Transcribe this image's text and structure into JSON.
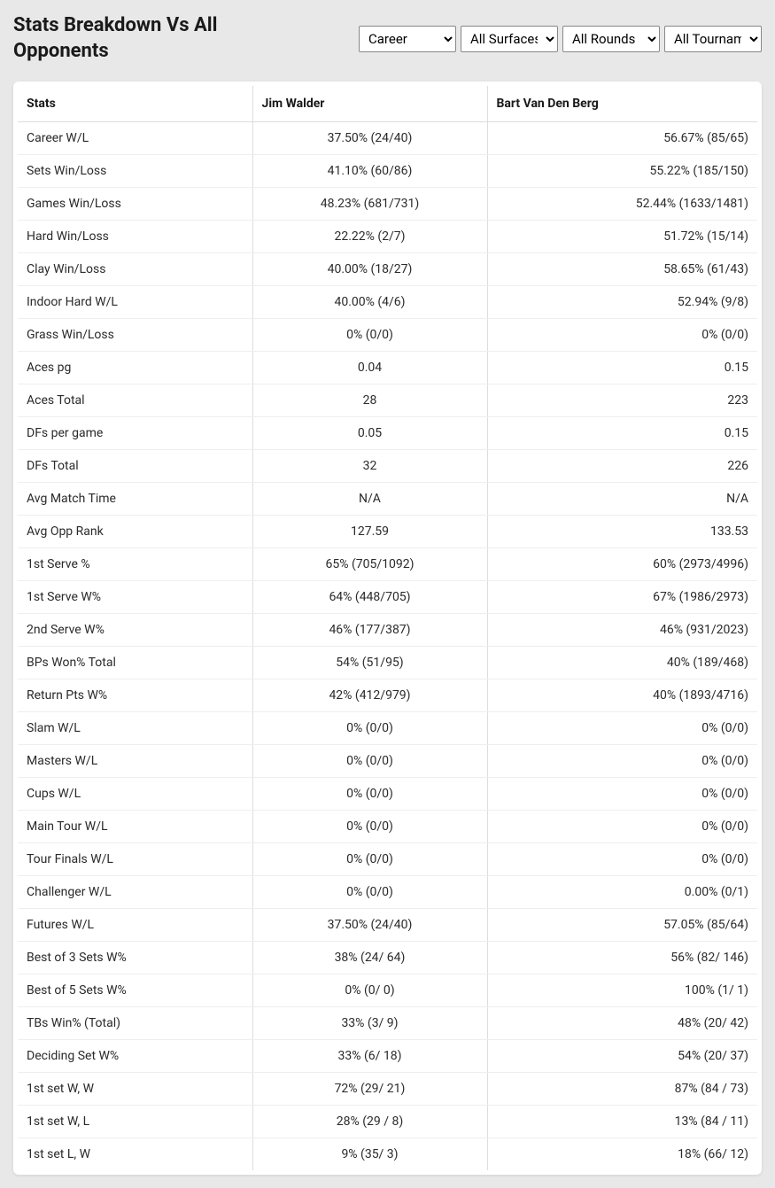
{
  "header": {
    "title": "Stats Breakdown Vs All Opponents"
  },
  "filters": {
    "period": {
      "selected": "Career",
      "options": [
        "Career"
      ]
    },
    "surface": {
      "selected": "All Surfaces",
      "options": [
        "All Surfaces"
      ]
    },
    "rounds": {
      "selected": "All Rounds",
      "options": [
        "All Rounds"
      ]
    },
    "tournament": {
      "selected": "All Tournaments",
      "options": [
        "All Tournaments"
      ]
    }
  },
  "table": {
    "columns": [
      "Stats",
      "Jim Walder",
      "Bart Van Den Berg"
    ],
    "rows": [
      {
        "stat": "Career W/L",
        "p1": "37.50% (24/40)",
        "p2": "56.67% (85/65)"
      },
      {
        "stat": "Sets Win/Loss",
        "p1": "41.10% (60/86)",
        "p2": "55.22% (185/150)"
      },
      {
        "stat": "Games Win/Loss",
        "p1": "48.23% (681/731)",
        "p2": "52.44% (1633/1481)"
      },
      {
        "stat": "Hard Win/Loss",
        "p1": "22.22% (2/7)",
        "p2": "51.72% (15/14)"
      },
      {
        "stat": "Clay Win/Loss",
        "p1": "40.00% (18/27)",
        "p2": "58.65% (61/43)"
      },
      {
        "stat": "Indoor Hard W/L",
        "p1": "40.00% (4/6)",
        "p2": "52.94% (9/8)"
      },
      {
        "stat": "Grass Win/Loss",
        "p1": "0% (0/0)",
        "p2": "0% (0/0)"
      },
      {
        "stat": "Aces pg",
        "p1": "0.04",
        "p2": "0.15"
      },
      {
        "stat": "Aces Total",
        "p1": "28",
        "p2": "223"
      },
      {
        "stat": "DFs per game",
        "p1": "0.05",
        "p2": "0.15"
      },
      {
        "stat": "DFs Total",
        "p1": "32",
        "p2": "226"
      },
      {
        "stat": "Avg Match Time",
        "p1": "N/A",
        "p2": "N/A"
      },
      {
        "stat": "Avg Opp Rank",
        "p1": "127.59",
        "p2": "133.53"
      },
      {
        "stat": "1st Serve %",
        "p1": "65% (705/1092)",
        "p2": "60% (2973/4996)"
      },
      {
        "stat": "1st Serve W%",
        "p1": "64% (448/705)",
        "p2": "67% (1986/2973)"
      },
      {
        "stat": "2nd Serve W%",
        "p1": "46% (177/387)",
        "p2": "46% (931/2023)"
      },
      {
        "stat": "BPs Won% Total",
        "p1": "54% (51/95)",
        "p2": "40% (189/468)"
      },
      {
        "stat": "Return Pts W%",
        "p1": "42% (412/979)",
        "p2": "40% (1893/4716)"
      },
      {
        "stat": "Slam W/L",
        "p1": "0% (0/0)",
        "p2": "0% (0/0)"
      },
      {
        "stat": "Masters W/L",
        "p1": "0% (0/0)",
        "p2": "0% (0/0)"
      },
      {
        "stat": "Cups W/L",
        "p1": "0% (0/0)",
        "p2": "0% (0/0)"
      },
      {
        "stat": "Main Tour W/L",
        "p1": "0% (0/0)",
        "p2": "0% (0/0)"
      },
      {
        "stat": "Tour Finals W/L",
        "p1": "0% (0/0)",
        "p2": "0% (0/0)"
      },
      {
        "stat": "Challenger W/L",
        "p1": "0% (0/0)",
        "p2": "0.00% (0/1)"
      },
      {
        "stat": "Futures W/L",
        "p1": "37.50% (24/40)",
        "p2": "57.05% (85/64)"
      },
      {
        "stat": "Best of 3 Sets W%",
        "p1": "38% (24/ 64)",
        "p2": "56% (82/ 146)"
      },
      {
        "stat": "Best of 5 Sets W%",
        "p1": "0% (0/ 0)",
        "p2": "100% (1/ 1)"
      },
      {
        "stat": "TBs Win% (Total)",
        "p1": "33% (3/ 9)",
        "p2": "48% (20/ 42)"
      },
      {
        "stat": "Deciding Set W%",
        "p1": "33% (6/ 18)",
        "p2": "54% (20/ 37)"
      },
      {
        "stat": "1st set W, W",
        "p1": "72% (29/ 21)",
        "p2": "87% (84 / 73)"
      },
      {
        "stat": "1st set W, L",
        "p1": "28% (29 / 8)",
        "p2": "13% (84 / 11)"
      },
      {
        "stat": "1st set L, W",
        "p1": "9% (35/ 3)",
        "p2": "18% (66/ 12)"
      }
    ]
  },
  "colors": {
    "background": "#e8e8e8",
    "card_bg": "#ffffff",
    "text": "#1a1a1a",
    "border": "#dddddd"
  }
}
